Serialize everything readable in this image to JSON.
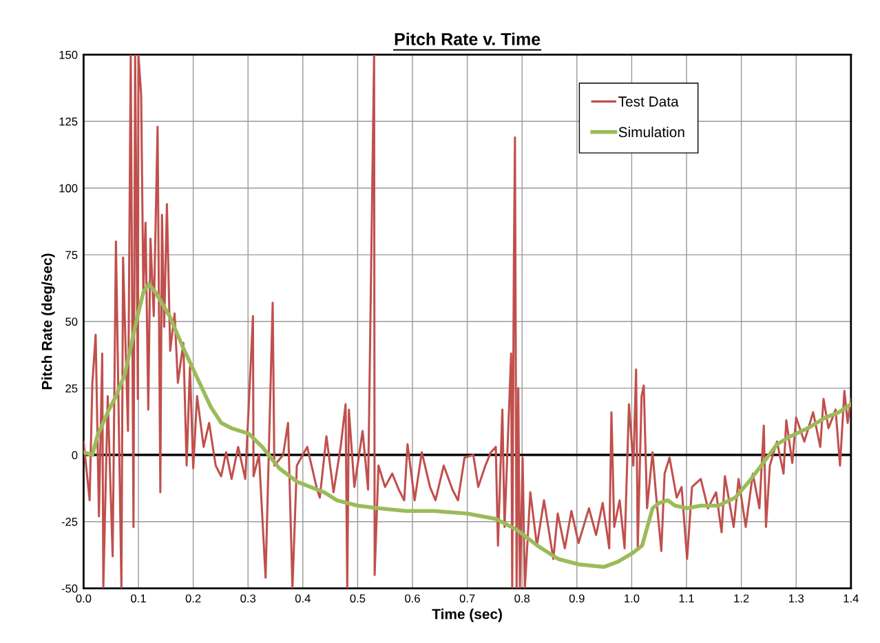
{
  "chart_data": {
    "type": "line",
    "title": "Pitch Rate v. Time",
    "xlabel": "Time (sec)",
    "ylabel": "Pitch Rate (deg/sec)",
    "xlim": [
      0.0,
      1.4
    ],
    "xticks": [
      {
        "value": 0.0,
        "label": "0.0"
      },
      0.1,
      0.2,
      0.3,
      0.4,
      0.5,
      0.6,
      0.7,
      0.8,
      0.9,
      {
        "value": 1.0,
        "label": "1.0"
      },
      1.1,
      1.2,
      1.3,
      1.4
    ],
    "ylim": [
      -50,
      150
    ],
    "yticks": [
      -50,
      -25,
      0,
      25,
      50,
      75,
      100,
      125,
      150
    ],
    "grid": true,
    "legend": "top right",
    "ref_lines": [
      {
        "axis": "y",
        "value": 0,
        "color": "#000000"
      }
    ],
    "series": [
      {
        "name": "Test Data",
        "color": "#c0504d",
        "x": [
          0.0,
          0.011,
          0.016,
          0.022,
          0.028,
          0.034,
          0.036,
          0.044,
          0.053,
          0.059,
          0.069,
          0.072,
          0.081,
          0.086,
          0.091,
          0.094,
          0.099,
          0.1,
          0.105,
          0.109,
          0.113,
          0.118,
          0.122,
          0.128,
          0.135,
          0.14,
          0.143,
          0.147,
          0.152,
          0.158,
          0.166,
          0.172,
          0.182,
          0.188,
          0.194,
          0.2,
          0.207,
          0.219,
          0.229,
          0.241,
          0.251,
          0.26,
          0.27,
          0.282,
          0.295,
          0.309,
          0.31,
          0.32,
          0.332,
          0.345,
          0.348,
          0.364,
          0.373,
          0.381,
          0.389,
          0.408,
          0.426,
          0.431,
          0.443,
          0.456,
          0.469,
          0.478,
          0.481,
          0.484,
          0.494,
          0.509,
          0.519,
          0.53,
          0.531,
          0.538,
          0.55,
          0.563,
          0.575,
          0.585,
          0.591,
          0.604,
          0.617,
          0.632,
          0.642,
          0.657,
          0.673,
          0.683,
          0.695,
          0.711,
          0.72,
          0.733,
          0.743,
          0.752,
          0.756,
          0.764,
          0.768,
          0.78,
          0.782,
          0.785,
          0.787,
          0.79,
          0.793,
          0.796,
          0.801,
          0.805,
          0.815,
          0.827,
          0.84,
          0.857,
          0.865,
          0.878,
          0.89,
          0.903,
          0.922,
          0.935,
          0.947,
          0.959,
          0.963,
          0.968,
          0.978,
          0.987,
          0.995,
          1.003,
          1.008,
          1.011,
          1.018,
          1.022,
          1.028,
          1.038,
          1.044,
          1.054,
          1.06,
          1.069,
          1.082,
          1.091,
          1.101,
          1.11,
          1.126,
          1.139,
          1.154,
          1.164,
          1.17,
          1.186,
          1.195,
          1.208,
          1.221,
          1.233,
          1.241,
          1.245,
          1.252,
          1.265,
          1.277,
          1.282,
          1.293,
          1.3,
          1.315,
          1.331,
          1.344,
          1.35,
          1.359,
          1.372,
          1.38,
          1.388,
          1.394,
          1.4
        ],
        "values": [
          5,
          -17,
          27,
          45,
          -23,
          38,
          -50,
          22,
          -38,
          80,
          -50,
          74,
          9,
          150,
          -27,
          150,
          21,
          150,
          135,
          61,
          87,
          17,
          81,
          52,
          123,
          -14,
          90,
          48,
          94,
          39,
          53,
          27,
          42,
          -4,
          33,
          -5,
          22,
          3,
          12,
          -4,
          -8,
          1,
          -9,
          3,
          -9,
          52,
          -8,
          0,
          -46,
          57,
          -4,
          0,
          12,
          -50,
          -4,
          3,
          -13,
          -16,
          7,
          -14,
          3,
          19,
          -50,
          17,
          -12,
          9,
          -13,
          150,
          -45,
          -4,
          -12,
          -7,
          -13,
          -17,
          4,
          -17,
          1,
          -12,
          -17,
          -4,
          -13,
          -17,
          -1,
          0,
          -12,
          -4,
          1,
          3,
          -34,
          17,
          -27,
          38,
          -50,
          72,
          119,
          -50,
          25,
          -50,
          -1,
          -50,
          -14,
          -34,
          -17,
          -39,
          -22,
          -35,
          -21,
          -33,
          -20,
          -30,
          -18,
          -35,
          16,
          -27,
          -17,
          -35,
          19,
          -4,
          32,
          -35,
          22,
          26,
          -20,
          1,
          -14,
          -36,
          -7,
          -1,
          -16,
          -12,
          -39,
          -12,
          -9,
          -20,
          -14,
          -29,
          -8,
          -27,
          -9,
          -27,
          -7,
          -20,
          11,
          -27,
          -4,
          5,
          -7,
          13,
          -3,
          14,
          5,
          16,
          3,
          21,
          10,
          17,
          -4,
          24,
          12,
          21
        ]
      },
      {
        "name": "Simulation",
        "color": "#9bbb59",
        "x": [
          0.0,
          0.016,
          0.025,
          0.044,
          0.059,
          0.075,
          0.094,
          0.109,
          0.119,
          0.131,
          0.157,
          0.182,
          0.207,
          0.232,
          0.251,
          0.27,
          0.301,
          0.326,
          0.357,
          0.389,
          0.439,
          0.462,
          0.5,
          0.538,
          0.588,
          0.639,
          0.7,
          0.752,
          0.79,
          0.828,
          0.866,
          0.903,
          0.949,
          0.975,
          1.0,
          1.019,
          1.038,
          1.05,
          1.066,
          1.079,
          1.101,
          1.126,
          1.158,
          1.189,
          1.214,
          1.24,
          1.265,
          1.29,
          1.321,
          1.353,
          1.378,
          1.4
        ],
        "values": [
          1,
          0,
          7,
          16,
          22,
          30,
          48,
          61,
          64,
          61,
          52,
          40,
          29,
          18,
          12,
          10,
          8,
          3,
          -5,
          -10,
          -14,
          -17,
          -19,
          -20,
          -21,
          -21,
          -22,
          -24,
          -28,
          -34,
          -39,
          -41,
          -42,
          -40,
          -37,
          -34,
          -20,
          -18,
          -17,
          -19,
          -20,
          -19,
          -19,
          -16,
          -10,
          -3,
          4,
          7,
          10,
          14,
          16,
          19
        ]
      }
    ]
  }
}
